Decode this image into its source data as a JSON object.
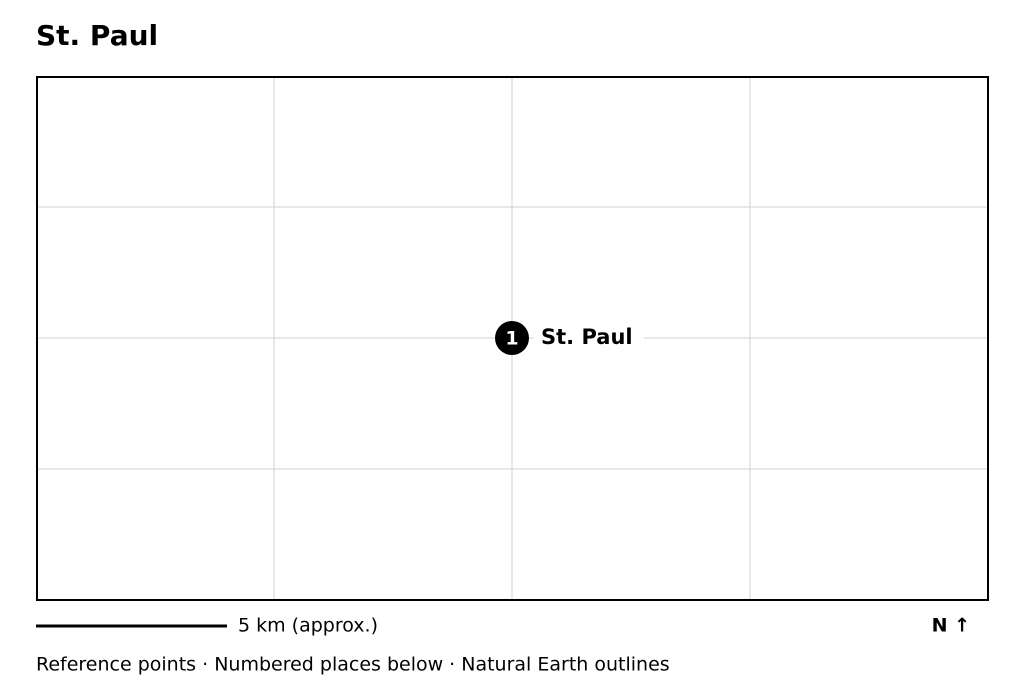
{
  "title": "St. Paul",
  "markers": [
    {
      "number": "1",
      "label": "St. Paul"
    }
  ],
  "scale_label": "5 km (approx.)",
  "north_label": "N ↑",
  "footer": "Reference points · Numbered places below · Natural Earth outlines"
}
